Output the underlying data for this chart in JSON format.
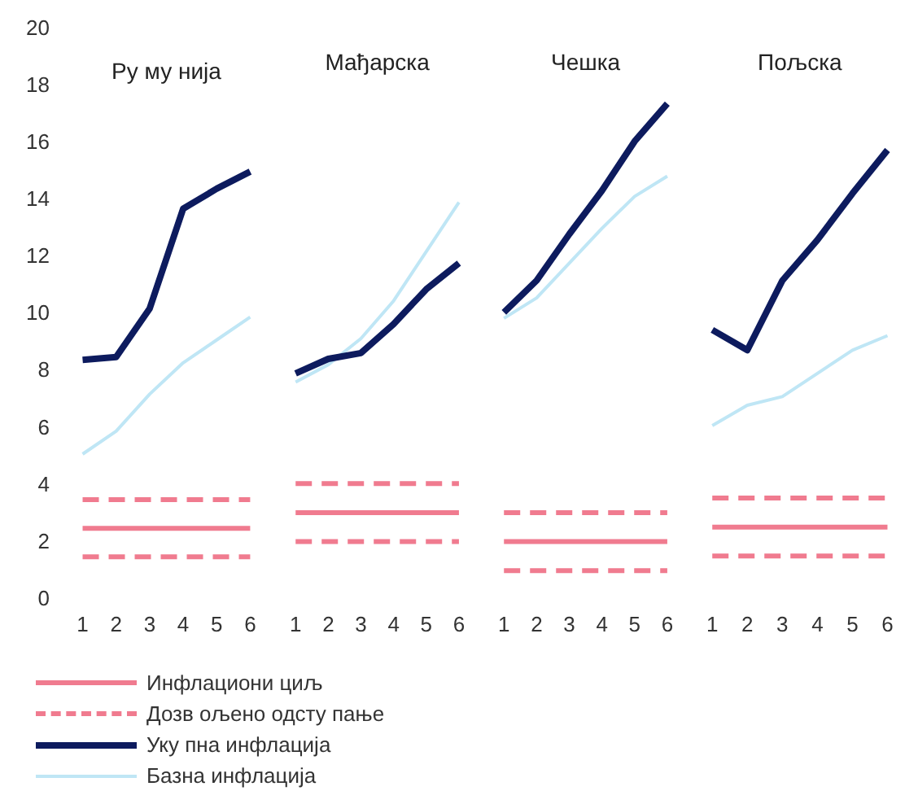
{
  "chart_data": [
    {
      "type": "line",
      "title": "Ру му нија",
      "categories": [
        "1",
        "2",
        "3",
        "4",
        "5",
        "6"
      ],
      "ylim": [
        0,
        20
      ],
      "yticks": [
        0,
        2,
        4,
        6,
        8,
        10,
        12,
        14,
        16,
        18,
        20
      ],
      "marker": "none",
      "legend": "bottom",
      "series": [
        {
          "name": "Инфлациони циљ",
          "color": "#f07b8f",
          "values": [
            2.5,
            2.5,
            2.5,
            2.5,
            2.5,
            2.5
          ]
        },
        {
          "name": "Дозв ољено одсту пање",
          "color": "#f07b8f",
          "line_style": "dashed",
          "values": [
            3.5,
            3.5,
            3.5,
            3.5,
            3.5,
            3.5
          ]
        },
        {
          "color": "#f07b8f",
          "line_style": "dashed",
          "values": [
            1.5,
            1.5,
            1.5,
            1.5,
            1.5,
            1.5
          ]
        },
        {
          "name": "Уку пна инфлација",
          "color": "#0d1b5e",
          "values": [
            8.4,
            8.5,
            10.2,
            13.7,
            14.4,
            15
          ]
        },
        {
          "name": "Базна инфлација",
          "color": "#bfe6f5",
          "values": [
            5.1,
            5.9,
            7.2,
            8.3,
            9.1,
            9.9
          ]
        }
      ]
    },
    {
      "type": "line",
      "title": "Мађарска",
      "categories": [
        "1",
        "2",
        "3",
        "4",
        "5",
        "6"
      ],
      "ylim": [
        0,
        20
      ],
      "yticks": [
        0,
        2,
        4,
        6,
        8,
        10,
        12,
        14,
        16,
        18,
        20
      ],
      "tick_labels": "x",
      "marker": "none",
      "series": [
        {
          "color": "#f07b8f",
          "values": [
            3,
            3,
            3,
            3,
            3,
            3
          ]
        },
        {
          "color": "#f07b8f",
          "line_style": "dashed",
          "values": [
            4,
            4,
            4,
            4,
            4,
            4
          ]
        },
        {
          "color": "#f07b8f",
          "line_style": "dashed",
          "values": [
            2,
            2,
            2,
            2,
            2,
            2
          ]
        },
        {
          "color": "#0d1b5e",
          "values": [
            7.8,
            8.3,
            8.5,
            9.5,
            10.7,
            11.6
          ]
        },
        {
          "color": "#bfe6f5",
          "values": [
            7.5,
            8.1,
            9,
            10.3,
            12,
            13.7
          ]
        }
      ]
    },
    {
      "type": "line",
      "title": "Чешка",
      "categories": [
        "1",
        "2",
        "3",
        "4",
        "5",
        "6"
      ],
      "ylim": [
        0,
        20
      ],
      "yticks": [
        0,
        2,
        4,
        6,
        8,
        10,
        12,
        14,
        16,
        18,
        20
      ],
      "tick_labels": "x",
      "marker": "none",
      "series": [
        {
          "color": "#f07b8f",
          "values": [
            2,
            2,
            2,
            2,
            2,
            2
          ]
        },
        {
          "color": "#f07b8f",
          "line_style": "dashed",
          "values": [
            3,
            3,
            3,
            3,
            3,
            3
          ]
        },
        {
          "color": "#f07b8f",
          "line_style": "dashed",
          "values": [
            1,
            1,
            1,
            1,
            1,
            1
          ]
        },
        {
          "color": "#0d1b5e",
          "values": [
            9.9,
            11,
            12.6,
            14.1,
            15.8,
            17.1
          ]
        },
        {
          "color": "#bfe6f5",
          "values": [
            9.7,
            10.4,
            11.6,
            12.8,
            13.9,
            14.6
          ]
        }
      ]
    },
    {
      "type": "line",
      "title": "Пољска",
      "categories": [
        "1",
        "2",
        "3",
        "4",
        "5",
        "6"
      ],
      "ylim": [
        0,
        20
      ],
      "yticks": [
        0,
        2,
        4,
        6,
        8,
        10,
        12,
        14,
        16,
        18,
        20
      ],
      "tick_labels": "x",
      "marker": "none",
      "series": [
        {
          "color": "#f07b8f",
          "values": [
            2.5,
            2.5,
            2.5,
            2.5,
            2.5,
            2.5
          ]
        },
        {
          "color": "#f07b8f",
          "line_style": "dashed",
          "values": [
            3.5,
            3.5,
            3.5,
            3.5,
            3.5,
            3.5
          ]
        },
        {
          "color": "#f07b8f",
          "line_style": "dashed",
          "values": [
            1.5,
            1.5,
            1.5,
            1.5,
            1.5,
            1.5
          ]
        },
        {
          "color": "#0d1b5e",
          "values": [
            9.3,
            8.6,
            11,
            12.4,
            14,
            15.5
          ]
        },
        {
          "color": "#bfe6f5",
          "values": [
            6,
            6.7,
            7,
            7.8,
            8.6,
            9.1
          ]
        }
      ]
    }
  ]
}
